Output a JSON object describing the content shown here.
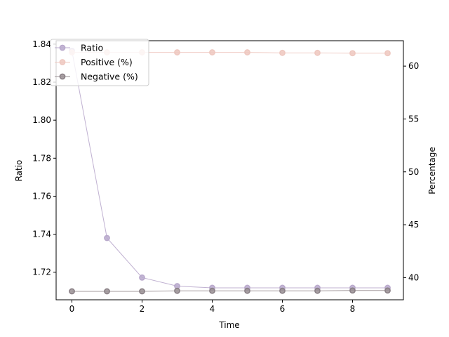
{
  "chart_data": {
    "type": "line",
    "title": "",
    "xlabel": "Time",
    "ylabel_left": "Ratio",
    "ylabel_right": "Percentage",
    "x": [
      0,
      1,
      2,
      3,
      4,
      5,
      6,
      7,
      8,
      9
    ],
    "xlim": [
      -0.45,
      9.45
    ],
    "ylim_left": [
      1.7055,
      1.8418
    ],
    "ylim_right": [
      37.9,
      62.4
    ],
    "x_ticks": [
      "0",
      "2",
      "4",
      "6",
      "8"
    ],
    "y_left_ticks": [
      "1.72",
      "1.74",
      "1.76",
      "1.78",
      "1.80",
      "1.82",
      "1.84"
    ],
    "y_right_ticks": [
      "40",
      "45",
      "50",
      "55",
      "60"
    ],
    "series": [
      {
        "name": "Ratio",
        "axis": "left",
        "color": "#b9a9cc",
        "marker_edge": "#b9a9cc",
        "values": [
          1.8365,
          1.738,
          1.7172,
          1.7127,
          1.7118,
          1.7118,
          1.7118,
          1.7118,
          1.7118,
          1.7118
        ]
      },
      {
        "name": "Positive (%)",
        "axis": "right",
        "color": "#eec8c0",
        "marker_edge": "#eec8c0",
        "values": [
          61.3,
          61.3,
          61.3,
          61.3,
          61.3,
          61.3,
          61.25,
          61.25,
          61.22,
          61.22
        ]
      },
      {
        "name": "Negative (%)",
        "axis": "right",
        "color": "#9a9094",
        "marker_edge": "#8a8086",
        "values": [
          38.7,
          38.7,
          38.7,
          38.75,
          38.75,
          38.75,
          38.75,
          38.75,
          38.78,
          38.78
        ]
      }
    ],
    "legend_position": "upper-left",
    "grid": false
  }
}
